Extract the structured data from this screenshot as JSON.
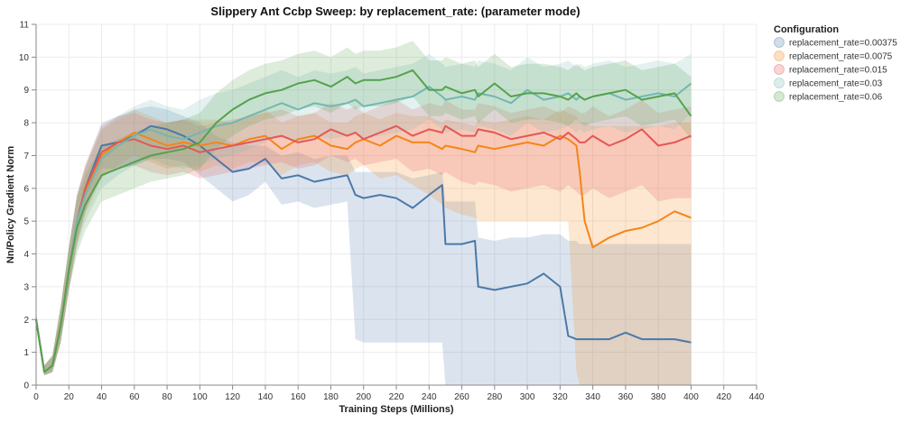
{
  "chart_data": {
    "type": "line",
    "title": "Slippery Ant Ccbp Sweep: by replacement_rate: (parameter mode)",
    "xlabel": "Training Steps (Millions)",
    "ylabel": "Nn/Policy Gradient Norm",
    "xlim": [
      0,
      440
    ],
    "ylim": [
      0,
      11
    ],
    "xticks": [
      0,
      20,
      40,
      60,
      80,
      100,
      120,
      140,
      160,
      180,
      200,
      220,
      240,
      260,
      280,
      300,
      320,
      340,
      360,
      380,
      400,
      420,
      440
    ],
    "yticks": [
      0,
      1,
      2,
      3,
      4,
      5,
      6,
      7,
      8,
      9,
      10,
      11
    ],
    "grid": true,
    "legend": {
      "title": "Configuration",
      "position": "right"
    },
    "x": [
      0,
      5,
      10,
      15,
      20,
      25,
      30,
      40,
      50,
      60,
      70,
      80,
      90,
      100,
      110,
      120,
      130,
      140,
      150,
      160,
      170,
      180,
      190,
      195,
      200,
      210,
      220,
      230,
      240,
      248,
      250,
      260,
      268,
      270,
      280,
      290,
      300,
      310,
      320,
      325,
      330,
      332,
      335,
      340,
      350,
      360,
      370,
      380,
      390,
      400
    ],
    "series": [
      {
        "name": "replacement_rate=0.00375",
        "color": "#4c78a8",
        "values": [
          2.0,
          0.4,
          0.6,
          1.8,
          3.5,
          5.0,
          6.0,
          7.3,
          7.4,
          7.6,
          7.9,
          7.8,
          7.6,
          7.3,
          6.9,
          6.5,
          6.6,
          6.9,
          6.3,
          6.4,
          6.2,
          6.3,
          6.4,
          5.8,
          5.7,
          5.8,
          5.7,
          5.4,
          5.8,
          6.1,
          4.3,
          4.3,
          4.4,
          3.0,
          2.9,
          3.0,
          3.1,
          3.4,
          3.0,
          1.5,
          1.4,
          1.4,
          1.4,
          1.4,
          1.4,
          1.6,
          1.4,
          1.4,
          1.4,
          1.3
        ],
        "upper": [
          2.2,
          0.6,
          0.9,
          2.4,
          4.2,
          5.8,
          6.7,
          8.0,
          8.2,
          8.4,
          8.5,
          8.4,
          8.2,
          8.0,
          7.6,
          7.4,
          7.3,
          7.3,
          7.0,
          7.1,
          6.9,
          7.0,
          7.0,
          6.5,
          6.5,
          6.5,
          6.5,
          6.3,
          6.4,
          6.5,
          5.6,
          5.6,
          5.6,
          4.5,
          4.4,
          4.5,
          4.5,
          4.6,
          4.6,
          4.4,
          4.4,
          4.3,
          4.3,
          4.3,
          4.3,
          4.3,
          4.3,
          4.3,
          4.3,
          4.3
        ],
        "lower": [
          1.8,
          0.3,
          0.4,
          1.3,
          2.9,
          4.4,
          5.3,
          6.6,
          6.6,
          6.7,
          6.9,
          6.9,
          6.8,
          6.4,
          6.0,
          5.6,
          5.8,
          6.2,
          5.5,
          5.6,
          5.4,
          5.5,
          5.6,
          1.4,
          1.3,
          1.3,
          1.3,
          1.3,
          1.3,
          1.3,
          0.0,
          0.0,
          0.0,
          0.0,
          0.0,
          0.0,
          0.0,
          0.0,
          0.0,
          0.0,
          0.0,
          0.0,
          0.0,
          0.0,
          0.0,
          0.0,
          0.0,
          0.0,
          0.0,
          0.0
        ]
      },
      {
        "name": "replacement_rate=0.0075",
        "color": "#f58518",
        "values": [
          2.0,
          0.4,
          0.6,
          1.8,
          3.5,
          5.0,
          5.9,
          7.0,
          7.4,
          7.7,
          7.5,
          7.3,
          7.4,
          7.3,
          7.4,
          7.3,
          7.5,
          7.6,
          7.2,
          7.5,
          7.6,
          7.3,
          7.2,
          7.4,
          7.5,
          7.3,
          7.6,
          7.4,
          7.4,
          7.2,
          7.3,
          7.2,
          7.1,
          7.3,
          7.2,
          7.3,
          7.4,
          7.3,
          7.6,
          7.5,
          7.3,
          6.5,
          5.0,
          4.2,
          4.5,
          4.7,
          4.8,
          5.0,
          5.3,
          5.1
        ],
        "upper": [
          2.2,
          0.6,
          0.9,
          2.4,
          4.2,
          5.8,
          6.6,
          7.8,
          8.1,
          8.4,
          8.2,
          8.0,
          8.1,
          8.1,
          8.1,
          8.0,
          8.2,
          8.4,
          8.0,
          8.2,
          8.3,
          8.0,
          8.0,
          8.2,
          8.3,
          8.1,
          8.3,
          8.2,
          8.2,
          8.0,
          8.1,
          8.0,
          7.9,
          8.1,
          8.0,
          8.1,
          8.2,
          8.1,
          8.4,
          8.3,
          8.2,
          8.0,
          8.0,
          7.9,
          7.9,
          7.9,
          7.9,
          7.9,
          8.0,
          8.0
        ],
        "lower": [
          1.8,
          0.3,
          0.4,
          1.3,
          2.9,
          4.3,
          5.2,
          6.3,
          6.7,
          7.0,
          6.8,
          6.6,
          6.7,
          6.5,
          6.7,
          6.6,
          6.8,
          6.8,
          6.4,
          6.7,
          6.8,
          6.5,
          6.4,
          6.6,
          6.7,
          6.3,
          6.4,
          6.1,
          5.8,
          5.5,
          5.4,
          5.2,
          5.1,
          5.0,
          5.0,
          5.0,
          5.0,
          5.0,
          5.0,
          5.0,
          0.4,
          0.0,
          0.0,
          0.0,
          0.0,
          0.0,
          0.0,
          0.0,
          0.0,
          0.0
        ]
      },
      {
        "name": "replacement_rate=0.015",
        "color": "#e45756",
        "values": [
          2.0,
          0.4,
          0.6,
          1.8,
          3.5,
          5.0,
          6.0,
          7.1,
          7.4,
          7.5,
          7.3,
          7.2,
          7.3,
          7.1,
          7.2,
          7.3,
          7.4,
          7.5,
          7.6,
          7.4,
          7.5,
          7.8,
          7.6,
          7.7,
          7.5,
          7.7,
          7.9,
          7.6,
          7.8,
          7.7,
          7.9,
          7.6,
          7.6,
          7.8,
          7.7,
          7.5,
          7.6,
          7.7,
          7.5,
          7.7,
          7.5,
          7.4,
          7.4,
          7.6,
          7.3,
          7.5,
          7.8,
          7.3,
          7.4,
          7.6
        ],
        "upper": [
          2.2,
          0.6,
          0.9,
          2.4,
          4.2,
          5.8,
          6.7,
          7.9,
          8.2,
          8.3,
          8.1,
          8.0,
          8.1,
          7.9,
          8.0,
          8.1,
          8.2,
          8.3,
          8.4,
          8.2,
          8.3,
          8.6,
          8.4,
          8.5,
          8.3,
          8.5,
          8.7,
          8.4,
          8.6,
          8.5,
          8.7,
          8.4,
          8.4,
          8.6,
          8.5,
          8.3,
          8.4,
          8.5,
          8.3,
          8.5,
          8.4,
          8.3,
          8.3,
          8.5,
          8.2,
          8.4,
          8.7,
          8.3,
          8.4,
          8.5
        ],
        "lower": [
          1.8,
          0.3,
          0.4,
          1.3,
          2.9,
          4.3,
          5.3,
          6.4,
          6.6,
          6.7,
          6.5,
          6.4,
          6.5,
          6.3,
          6.4,
          6.5,
          6.6,
          6.7,
          6.8,
          6.6,
          6.7,
          7.0,
          6.8,
          6.9,
          6.7,
          6.8,
          6.9,
          6.5,
          6.6,
          6.4,
          6.5,
          6.2,
          6.1,
          6.2,
          6.1,
          5.9,
          6.0,
          6.1,
          5.9,
          6.1,
          5.9,
          5.8,
          5.8,
          6.0,
          5.7,
          5.9,
          6.1,
          5.6,
          5.7,
          5.7
        ]
      },
      {
        "name": "replacement_rate=0.03",
        "color": "#72b7b2",
        "values": [
          2.0,
          0.4,
          0.6,
          1.8,
          3.5,
          5.0,
          5.8,
          6.9,
          7.3,
          7.6,
          7.8,
          7.6,
          7.5,
          7.7,
          7.9,
          8.0,
          8.2,
          8.4,
          8.6,
          8.4,
          8.6,
          8.5,
          8.6,
          8.7,
          8.5,
          8.6,
          8.7,
          8.8,
          9.1,
          8.8,
          8.7,
          8.8,
          8.7,
          8.9,
          8.8,
          8.6,
          9.0,
          8.7,
          8.8,
          8.9,
          8.7,
          8.8,
          8.7,
          8.8,
          8.9,
          8.7,
          8.8,
          8.9,
          8.8,
          9.2
        ],
        "upper": [
          2.2,
          0.6,
          0.9,
          2.4,
          4.2,
          5.8,
          6.6,
          7.8,
          8.2,
          8.5,
          8.7,
          8.5,
          8.4,
          8.7,
          8.9,
          9.0,
          9.2,
          9.4,
          9.6,
          9.4,
          9.6,
          9.5,
          9.6,
          9.7,
          9.5,
          9.6,
          9.7,
          9.8,
          10.1,
          9.8,
          9.7,
          9.8,
          9.7,
          9.9,
          9.8,
          9.6,
          10.0,
          9.7,
          9.8,
          9.9,
          9.7,
          9.8,
          9.7,
          9.8,
          9.9,
          9.7,
          9.8,
          9.9,
          9.8,
          10.1
        ],
        "lower": [
          1.8,
          0.3,
          0.4,
          1.3,
          2.9,
          4.2,
          5.0,
          6.0,
          6.4,
          6.7,
          6.9,
          6.7,
          6.6,
          6.7,
          6.9,
          7.0,
          7.2,
          7.4,
          7.6,
          7.4,
          7.6,
          7.5,
          7.6,
          7.7,
          7.5,
          7.6,
          7.7,
          7.8,
          8.1,
          7.8,
          7.7,
          7.8,
          7.7,
          7.9,
          7.8,
          7.6,
          8.0,
          7.7,
          7.8,
          7.9,
          7.7,
          7.8,
          7.7,
          7.8,
          7.9,
          7.7,
          7.8,
          7.9,
          7.8,
          8.3
        ]
      },
      {
        "name": "replacement_rate=0.06",
        "color": "#54a24b",
        "values": [
          2.0,
          0.4,
          0.6,
          1.8,
          3.5,
          4.8,
          5.5,
          6.4,
          6.6,
          6.8,
          7.0,
          7.1,
          7.2,
          7.4,
          8.0,
          8.4,
          8.7,
          8.9,
          9.0,
          9.2,
          9.3,
          9.1,
          9.4,
          9.2,
          9.3,
          9.3,
          9.4,
          9.6,
          9.0,
          9.0,
          9.1,
          8.9,
          9.0,
          8.8,
          9.2,
          8.8,
          8.9,
          8.9,
          8.8,
          8.7,
          8.9,
          8.8,
          8.7,
          8.8,
          8.9,
          9.0,
          8.7,
          8.8,
          8.9,
          8.2
        ],
        "upper": [
          2.2,
          0.6,
          0.9,
          2.4,
          4.2,
          5.7,
          6.4,
          7.3,
          7.5,
          7.7,
          7.9,
          8.0,
          8.1,
          8.3,
          8.9,
          9.3,
          9.6,
          9.8,
          9.9,
          10.1,
          10.2,
          10.0,
          10.3,
          10.1,
          10.2,
          10.2,
          10.3,
          10.5,
          9.9,
          9.9,
          10.0,
          9.8,
          9.9,
          9.7,
          10.1,
          9.7,
          9.8,
          9.8,
          9.7,
          9.6,
          9.8,
          9.7,
          9.6,
          9.7,
          9.8,
          9.9,
          9.6,
          9.7,
          9.8,
          9.4
        ],
        "lower": [
          1.8,
          0.3,
          0.4,
          1.3,
          2.9,
          4.0,
          4.7,
          5.6,
          5.8,
          6.0,
          6.2,
          6.3,
          6.4,
          6.6,
          7.2,
          7.6,
          7.9,
          8.1,
          8.2,
          8.4,
          8.5,
          8.3,
          8.6,
          8.4,
          8.5,
          8.5,
          8.6,
          8.8,
          8.2,
          8.2,
          8.3,
          8.1,
          8.2,
          8.0,
          8.4,
          8.0,
          8.1,
          8.1,
          8.0,
          7.9,
          8.1,
          8.0,
          7.9,
          8.0,
          8.1,
          8.2,
          7.9,
          8.0,
          8.1,
          7.5
        ]
      }
    ]
  }
}
